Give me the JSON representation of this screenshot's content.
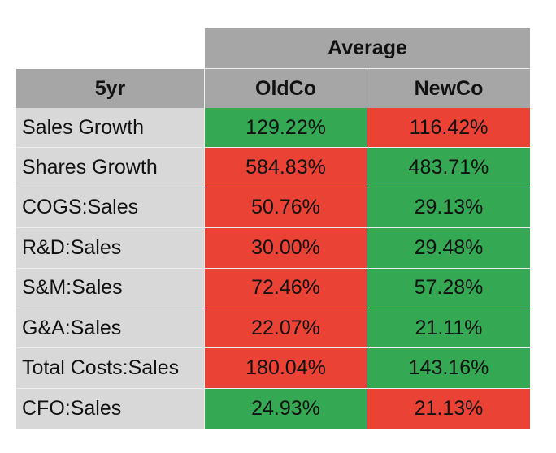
{
  "header": {
    "group_label": "Average",
    "corner_label": "5yr",
    "columns": [
      "OldCo",
      "NewCo"
    ]
  },
  "colors": {
    "header_bg": "#a6a6a6",
    "label_bg": "#d8d8d8",
    "good": "#34a853",
    "bad": "#ea4335"
  },
  "rows": [
    {
      "label": "Sales Growth",
      "oldco": "129.22%",
      "newco": "116.42%",
      "oldco_status": "good",
      "newco_status": "bad"
    },
    {
      "label": "Shares Growth",
      "oldco": "584.83%",
      "newco": "483.71%",
      "oldco_status": "bad",
      "newco_status": "good"
    },
    {
      "label": "COGS:Sales",
      "oldco": "50.76%",
      "newco": "29.13%",
      "oldco_status": "bad",
      "newco_status": "good"
    },
    {
      "label": "R&D:Sales",
      "oldco": "30.00%",
      "newco": "29.48%",
      "oldco_status": "bad",
      "newco_status": "good"
    },
    {
      "label": "S&M:Sales",
      "oldco": "72.46%",
      "newco": "57.28%",
      "oldco_status": "bad",
      "newco_status": "good"
    },
    {
      "label": "G&A:Sales",
      "oldco": "22.07%",
      "newco": "21.11%",
      "oldco_status": "bad",
      "newco_status": "good"
    },
    {
      "label": "Total Costs:Sales",
      "oldco": "180.04%",
      "newco": "143.16%",
      "oldco_status": "bad",
      "newco_status": "good"
    },
    {
      "label": "CFO:Sales",
      "oldco": "24.93%",
      "newco": "21.13%",
      "oldco_status": "good",
      "newco_status": "bad"
    }
  ]
}
